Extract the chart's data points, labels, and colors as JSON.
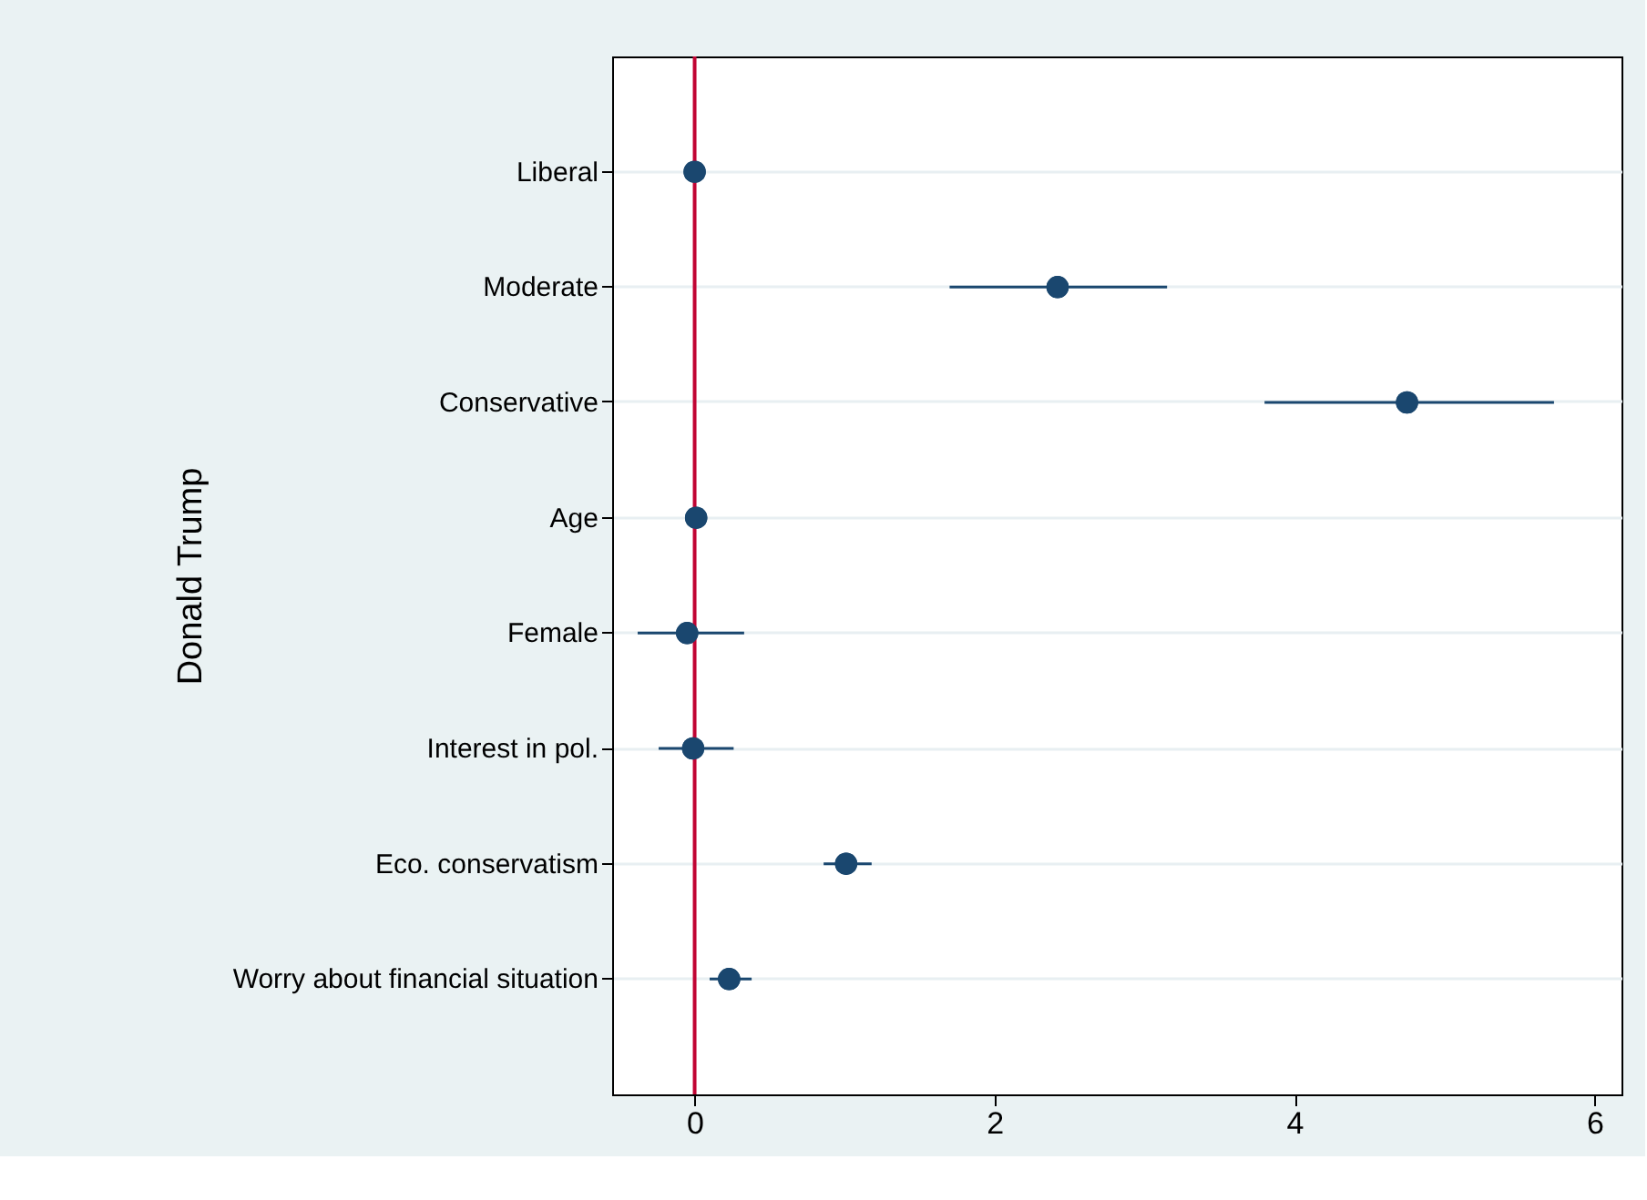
{
  "chart_data": {
    "type": "scatter",
    "orientation": "horizontal",
    "ylabel": "Donald Trump",
    "categories": [
      "Liberal",
      "Moderate",
      "Conservative",
      "Age",
      "Female",
      "Interest in pol.",
      "Eco. conservatism",
      "Worry about financial situation"
    ],
    "series": [
      {
        "color": "#1a476f",
        "values": [
          0,
          2.42,
          4.75,
          0.01,
          -0.05,
          -0.01,
          1.01,
          0.23
        ],
        "errors": [
          null,
          [
            1.7,
            3.15
          ],
          [
            3.8,
            5.73
          ],
          null,
          [
            -0.38,
            0.33
          ],
          [
            -0.24,
            0.26
          ],
          [
            0.86,
            1.18
          ],
          [
            0.1,
            0.38
          ]
        ]
      }
    ],
    "xlim": [
      -0.55,
      6.18
    ],
    "xticks": [
      0,
      2,
      4,
      6
    ],
    "grid": "y",
    "marker": "circle",
    "legend": false,
    "ref_lines": [
      {
        "axis": "x",
        "value": 0,
        "color": "#c10534"
      }
    ]
  }
}
